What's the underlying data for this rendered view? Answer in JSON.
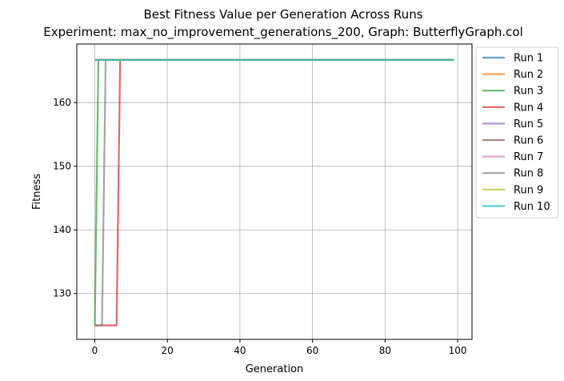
{
  "chart_data": {
    "type": "line",
    "title": "Best Fitness Value per Generation Across Runs",
    "subtitle": "Experiment: max_no_improvement_generations_200, Graph: ButterflyGraph.col",
    "xlabel": "Generation",
    "ylabel": "Fitness",
    "xlim": [
      -4.95,
      103.95
    ],
    "ylim": [
      122.8,
      169.2
    ],
    "xticks": [
      0,
      20,
      40,
      60,
      80,
      100
    ],
    "yticks": [
      130,
      140,
      150,
      160
    ],
    "grid": true,
    "legend_position": "outside-right",
    "series": [
      {
        "name": "Run 1",
        "color": "#1f77b4",
        "points": [
          [
            0,
            166.7
          ],
          [
            99,
            166.7
          ]
        ]
      },
      {
        "name": "Run 2",
        "color": "#ff7f0e",
        "points": [
          [
            0,
            166.7
          ],
          [
            99,
            166.7
          ]
        ]
      },
      {
        "name": "Run 3",
        "color": "#2ca02c",
        "points": [
          [
            0,
            125
          ],
          [
            1,
            166.7
          ],
          [
            99,
            166.7
          ]
        ]
      },
      {
        "name": "Run 4",
        "color": "#d62728",
        "points": [
          [
            0,
            125
          ],
          [
            6,
            125
          ],
          [
            7,
            166.7
          ],
          [
            99,
            166.7
          ]
        ]
      },
      {
        "name": "Run 5",
        "color": "#9467bd",
        "points": [
          [
            0,
            166.7
          ],
          [
            99,
            166.7
          ]
        ]
      },
      {
        "name": "Run 6",
        "color": "#8c564b",
        "points": [
          [
            0,
            166.7
          ],
          [
            99,
            166.7
          ]
        ]
      },
      {
        "name": "Run 7",
        "color": "#e377c2",
        "points": [
          [
            0,
            166.7
          ],
          [
            99,
            166.7
          ]
        ]
      },
      {
        "name": "Run 8",
        "color": "#7f7f7f",
        "points": [
          [
            0,
            125
          ],
          [
            2,
            125
          ],
          [
            3,
            166.7
          ],
          [
            99,
            166.7
          ]
        ]
      },
      {
        "name": "Run 9",
        "color": "#bcbd22",
        "points": [
          [
            0,
            166.7
          ],
          [
            99,
            166.7
          ]
        ]
      },
      {
        "name": "Run 10",
        "color": "#17becf",
        "points": [
          [
            0,
            166.7
          ],
          [
            99,
            166.7
          ]
        ]
      }
    ]
  }
}
